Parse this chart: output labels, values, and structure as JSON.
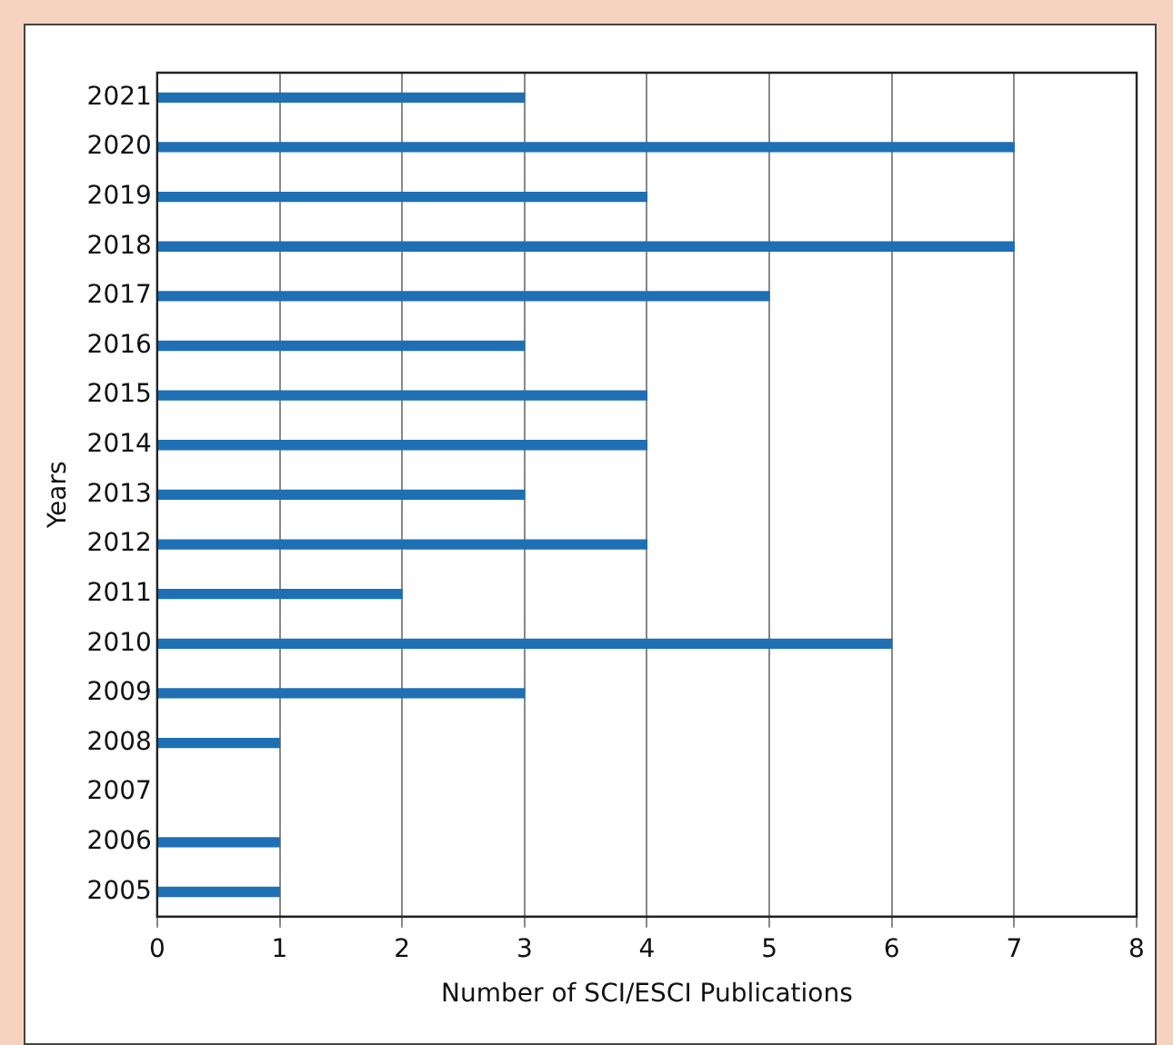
{
  "chart_data": {
    "type": "bar",
    "orientation": "horizontal",
    "xlabel": "Number of SCI/ESCI Publications",
    "ylabel": "Years",
    "categories": [
      "2021",
      "2020",
      "2019",
      "2018",
      "2017",
      "2016",
      "2015",
      "2014",
      "2013",
      "2012",
      "2011",
      "2010",
      "2009",
      "2008",
      "2007",
      "2006",
      "2005"
    ],
    "values": [
      3,
      7,
      4,
      7,
      5,
      3,
      4,
      4,
      3,
      4,
      2,
      6,
      3,
      1,
      0,
      1,
      1
    ],
    "color": "#1f6fb4",
    "xlim": [
      0,
      8
    ],
    "xticks": [
      0,
      1,
      2,
      3,
      4,
      5,
      6,
      7,
      8
    ],
    "grid": "x",
    "legend": false
  }
}
